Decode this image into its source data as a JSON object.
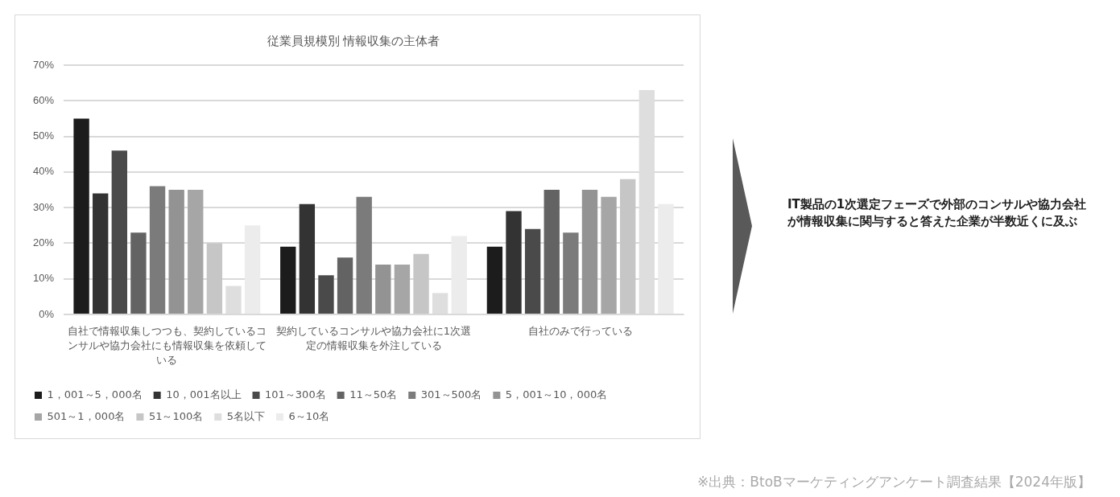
{
  "chart_data": {
    "type": "bar",
    "title": "従業員規模別 情報収集の主体者",
    "categories": [
      "自社で情報収集しつつも、契約しているコンサルや協力会社にも情報収集を依頼している",
      "契約しているコンサルや協力会社に1次選定の情報収集を外注している",
      "自社のみで行っている"
    ],
    "series": [
      {
        "name": "1，001～5，000名",
        "color": "#1c1c1c",
        "values": [
          55,
          19,
          19
        ]
      },
      {
        "name": "10，001名以上",
        "color": "#333333",
        "values": [
          34,
          31,
          29
        ]
      },
      {
        "name": "101～300名",
        "color": "#4a4a4a",
        "values": [
          46,
          11,
          24
        ]
      },
      {
        "name": "11～50名",
        "color": "#636363",
        "values": [
          23,
          16,
          35
        ]
      },
      {
        "name": "301～500名",
        "color": "#7b7b7b",
        "values": [
          36,
          33,
          23
        ]
      },
      {
        "name": "5，001～10，000名",
        "color": "#939393",
        "values": [
          35,
          14,
          35
        ]
      },
      {
        "name": "501～1，000名",
        "color": "#a6a6a6",
        "values": [
          35,
          14,
          33
        ]
      },
      {
        "name": "51～100名",
        "color": "#c6c6c6",
        "values": [
          20,
          17,
          38
        ]
      },
      {
        "name": "5名以下",
        "color": "#dedede",
        "values": [
          8,
          6,
          63
        ]
      },
      {
        "name": "6～10名",
        "color": "#ececec",
        "values": [
          25,
          22,
          31
        ]
      }
    ],
    "ylim": [
      0,
      70
    ],
    "yticks": [
      {
        "value": 0,
        "label": "0%"
      },
      {
        "value": 10,
        "label": "10%"
      },
      {
        "value": 20,
        "label": "20%"
      },
      {
        "value": 30,
        "label": "30%"
      },
      {
        "value": 40,
        "label": "40%"
      },
      {
        "value": 50,
        "label": "50%"
      },
      {
        "value": 60,
        "label": "60%"
      },
      {
        "value": 70,
        "label": "70%"
      }
    ],
    "grid": "y",
    "legend": "bottom",
    "annotations": [
      "IT製品の1次選定フェーズで外部のコンサルや協力会社が情報収集に関与すると答えた企業が半数近くに及ぶ",
      "※出典：BtoBマーケティングアンケート調査結果【2024年版】"
    ]
  }
}
